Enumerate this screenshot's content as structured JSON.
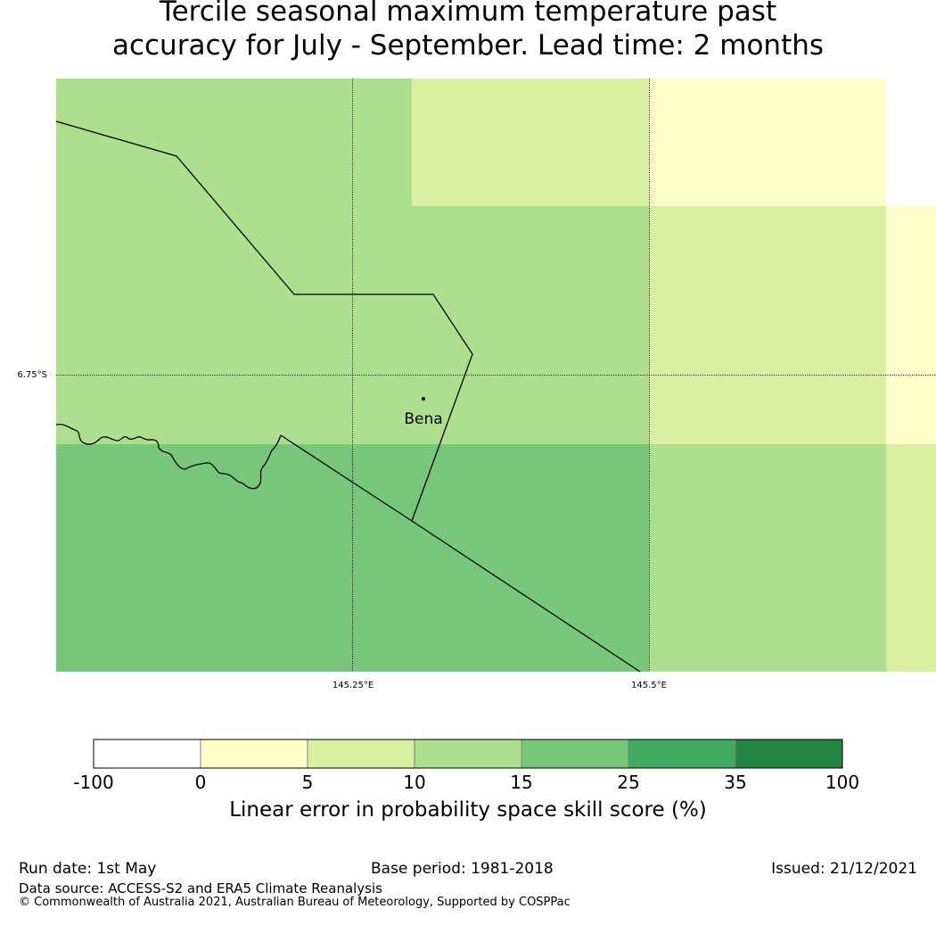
{
  "title": {
    "line1": "Tercile seasonal maximum temperature past",
    "line2": "accuracy for July - September. Lead time: 2 months"
  },
  "map": {
    "lat_label": "6.75°S",
    "lon_labels": [
      "145.25°E",
      "145.5°E"
    ],
    "place": "Bena",
    "cells": [
      {
        "lat_band": 1,
        "lon_band": 1,
        "score_class": "10-15",
        "color": "#addf8e"
      },
      {
        "lat_band": 1,
        "lon_band": 2,
        "score_class": "5-10",
        "color": "#d9f0a3"
      },
      {
        "lat_band": 1,
        "lon_band": 3,
        "score_class": "0-5",
        "color": "#ffffcc"
      },
      {
        "lat_band": 2,
        "lon_band": 1,
        "score_class": "10-15",
        "color": "#addf8e"
      },
      {
        "lat_band": 2,
        "lon_band": 2,
        "score_class": "10-15",
        "color": "#addf8e"
      },
      {
        "lat_band": 2,
        "lon_band": 3,
        "score_class": "5-10",
        "color": "#d9f0a3"
      },
      {
        "lat_band": 2,
        "lon_band": 4,
        "score_class": "0-5",
        "color": "#ffffcc"
      },
      {
        "lat_band": 3,
        "lon_band": 1,
        "score_class": "15-25",
        "color": "#78c679"
      },
      {
        "lat_band": 3,
        "lon_band": 2,
        "score_class": "15-25",
        "color": "#78c679"
      },
      {
        "lat_band": 3,
        "lon_band": 3,
        "score_class": "10-15",
        "color": "#addf8e"
      },
      {
        "lat_band": 3,
        "lon_band": 4,
        "score_class": "5-10",
        "color": "#d9f0a3"
      }
    ]
  },
  "colorbar": {
    "ticks": [
      "-100",
      "0",
      "5",
      "10",
      "15",
      "25",
      "35",
      "100"
    ],
    "colors": [
      "#ffffff",
      "#ffffcc",
      "#d9f0a3",
      "#addf8e",
      "#78c679",
      "#41ab5d",
      "#238443"
    ],
    "label": "Linear error in probability space skill score (%)"
  },
  "footer": {
    "run_date": "Run date: 1st May",
    "base_period": "Base period: 1981-2018",
    "issued": "Issued: 21/12/2021",
    "source": "Data source: ACCESS-S2 and ERA5 Climate Reanalysis",
    "copyright": "© Commonwealth of Australia 2021, Australian Bureau of Meteorology, Supported by COSPPac"
  }
}
